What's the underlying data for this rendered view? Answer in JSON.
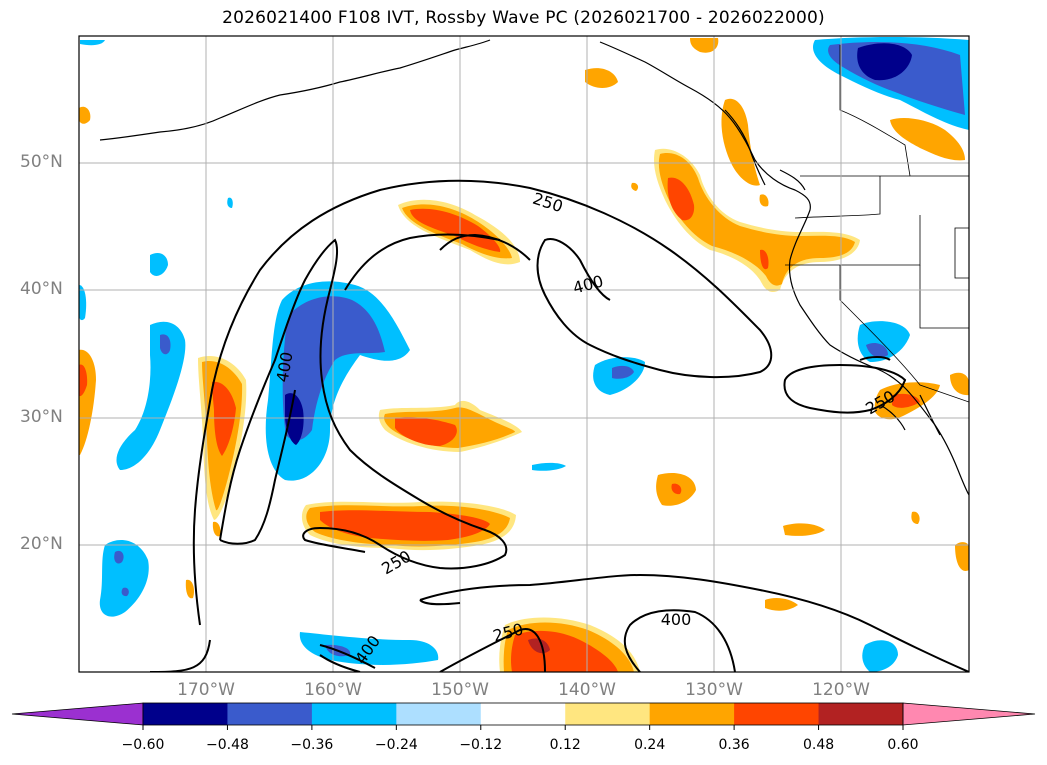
{
  "title": "2026021400 F108 IVT, Rossby Wave PC (2026021700 - 2026022000)",
  "lat_labels": [
    "50°N",
    "40°N",
    "30°N",
    "20°N"
  ],
  "lon_labels": [
    "170°W",
    "160°W",
    "150°W",
    "140°W",
    "130°W",
    "120°W"
  ],
  "contour_labels": [
    "250",
    "400",
    "400",
    "250",
    "250",
    "250",
    "400",
    "400"
  ],
  "colorbar": {
    "ticks": [
      "−0.60",
      "−0.48",
      "−0.36",
      "−0.24",
      "−0.12",
      "0.12",
      "0.24",
      "0.36",
      "0.48",
      "0.60"
    ],
    "colors": [
      "#9b30d0",
      "#00008b",
      "#3a5bcc",
      "#00bfff",
      "#addfff",
      "#ffffff",
      "#ffe680",
      "#ffa500",
      "#ff4500",
      "#b22222",
      "#ff88b0"
    ]
  },
  "colors": {
    "gridline": "#b0b0b0",
    "label_gray": "#808080",
    "contour": "#000000"
  }
}
